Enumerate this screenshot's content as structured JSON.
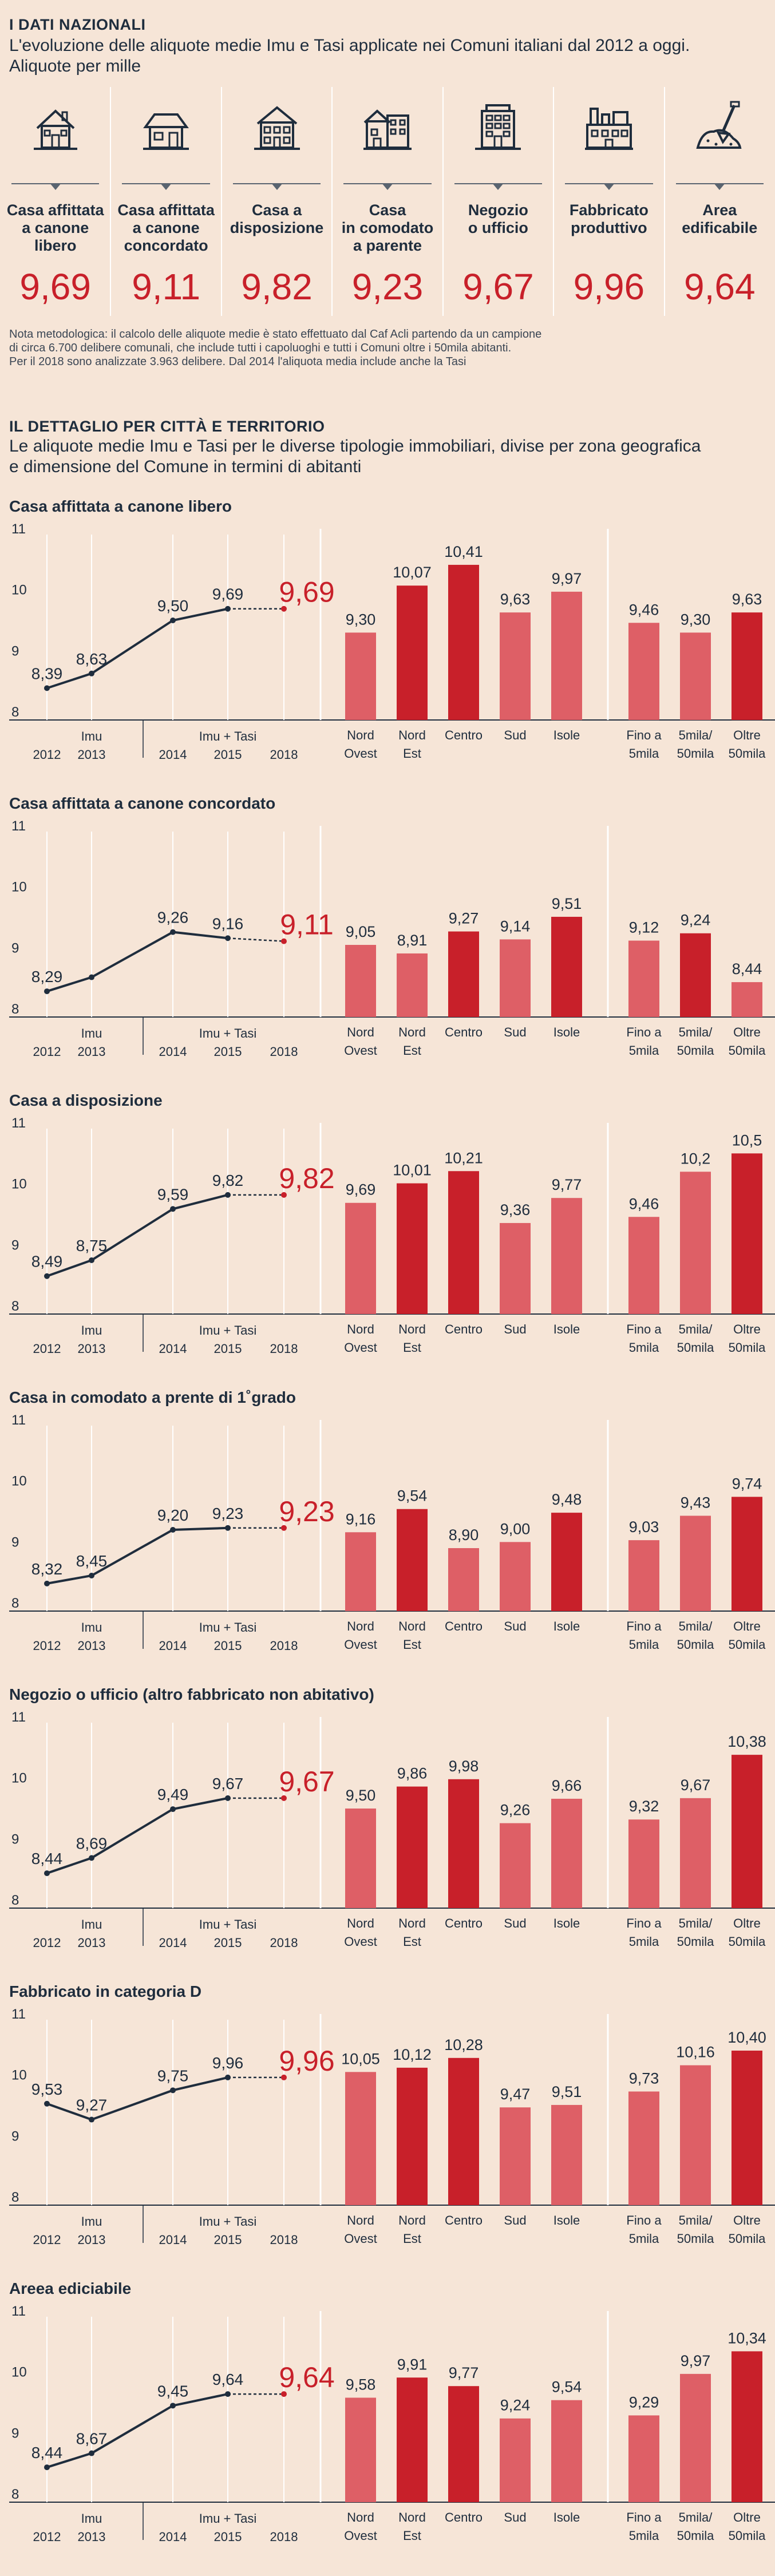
{
  "header": {
    "section": "I DATI NAZIONALI",
    "subtitle_line1": "L'evoluzione delle aliquote medie Imu e Tasi applicate nei Comuni italiani dal 2012 a oggi.",
    "subtitle_line2": "Aliquote per mille"
  },
  "cards": [
    {
      "icon": "house-icon",
      "label_lines": [
        "Casa affittata",
        "a canone",
        "libero"
      ],
      "value": "9,69"
    },
    {
      "icon": "cottage-icon",
      "label_lines": [
        "Casa affittata",
        "a canone",
        "concordato"
      ],
      "value": "9,11"
    },
    {
      "icon": "townhouse-icon",
      "label_lines": [
        "Casa a",
        "disposizione"
      ],
      "value": "9,82"
    },
    {
      "icon": "homes-icon",
      "label_lines": [
        "Casa",
        "in comodato",
        "a parente"
      ],
      "value": "9,23"
    },
    {
      "icon": "office-building-icon",
      "label_lines": [
        "Negozio",
        "o ufficio"
      ],
      "value": "9,67"
    },
    {
      "icon": "factory-icon",
      "label_lines": [
        "Fabbricato",
        "produttivo"
      ],
      "value": "9,96"
    },
    {
      "icon": "soil-shovel-icon",
      "label_lines": [
        "Area",
        "edificabile"
      ],
      "value": "9,64"
    }
  ],
  "note": {
    "line1": "Nota metodologica: il calcolo delle aliquote medie è stato effettuato dal Caf Acli partendo da un campione",
    "line2": "di circa 6.700 delibere comunali, che include  tutti i capoluoghi e tutti i Comuni oltre i 50mila abitanti.",
    "line3": "Per il 2018 sono analizzate 3.963 delibere. Dal 2014 l'aliquota media include anche la Tasi"
  },
  "detail": {
    "section": "IL DETTAGLIO PER CITTÀ E TERRITORIO",
    "subtitle_line1": "Le aliquote medie Imu e Tasi per le diverse tipologie immobiliari, divise per zona geografica",
    "subtitle_line2": "e dimensione del Comune in termini di abitanti"
  },
  "colors": {
    "background": "#f6e5d7",
    "red": "#c8202a",
    "light_red": "#de5f66",
    "navy": "#1f2d3d"
  },
  "chart_data": [
    {
      "title": "Casa affittata a canone libero",
      "type": "line",
      "y_ticks": [
        "11",
        "10",
        "9",
        "8"
      ],
      "ylim": [
        8,
        11
      ],
      "line": {
        "x": [
          "2012",
          "2013",
          "2014",
          "2015",
          "2018"
        ],
        "values": [
          8.39,
          8.63,
          9.5,
          9.69,
          9.69
        ],
        "labels": [
          "8,39",
          "8,63",
          "9,50",
          "9,69",
          "9,69"
        ],
        "groups": [
          "Imu",
          "Imu + Tasi"
        ]
      },
      "regions": {
        "type": "bar",
        "categories": [
          "Nord Ovest",
          "Nord Est",
          "Centro",
          "Sud",
          "Isole"
        ],
        "values": [
          9.3,
          10.07,
          10.41,
          9.63,
          9.97
        ],
        "labels": [
          "9,30",
          "10,07",
          "10,41",
          "9,63",
          "9,97"
        ]
      },
      "sizes": {
        "type": "bar",
        "categories": [
          "Fino a 5mila",
          "5mila/ 50mila",
          "Oltre 50mila"
        ],
        "values": [
          9.46,
          9.3,
          9.63
        ],
        "labels": [
          "9,46",
          "9,30",
          "9,63"
        ]
      }
    },
    {
      "title": "Casa affittata a canone concordato",
      "type": "line",
      "y_ticks": [
        "11",
        "10",
        "9",
        "8"
      ],
      "ylim": [
        8,
        11
      ],
      "line": {
        "x": [
          "2012",
          "2013",
          "2014",
          "2015",
          "2018"
        ],
        "values": [
          8.29,
          8.52,
          9.26,
          9.16,
          9.11
        ],
        "labels": [
          "8,29",
          "",
          "9,26",
          "9,16",
          "9,11"
        ],
        "groups": [
          "Imu",
          "Imu + Tasi"
        ]
      },
      "regions": {
        "type": "bar",
        "categories": [
          "Nord Ovest",
          "Nord Est",
          "Centro",
          "Sud",
          "Isole"
        ],
        "values": [
          9.05,
          8.91,
          9.27,
          9.14,
          9.51
        ],
        "labels": [
          "9,05",
          "8,91",
          "9,27",
          "9,14",
          "9,51"
        ]
      },
      "sizes": {
        "type": "bar",
        "categories": [
          "Fino a 5mila",
          "5mila/ 50mila",
          "Oltre 50mila"
        ],
        "values": [
          9.12,
          9.24,
          8.44
        ],
        "labels": [
          "9,12",
          "9,24",
          "8,44"
        ]
      }
    },
    {
      "title": "Casa a disposizione",
      "type": "line",
      "y_ticks": [
        "11",
        "10",
        "9",
        "8"
      ],
      "ylim": [
        8,
        11
      ],
      "line": {
        "x": [
          "2012",
          "2013",
          "2014",
          "2015",
          "2018"
        ],
        "values": [
          8.49,
          8.75,
          9.59,
          9.82,
          9.82
        ],
        "labels": [
          "8,49",
          "8,75",
          "9,59",
          "9,82",
          "9,82"
        ],
        "groups": [
          "Imu",
          "Imu + Tasi"
        ]
      },
      "regions": {
        "type": "bar",
        "categories": [
          "Nord Ovest",
          "Nord Est",
          "Centro",
          "Sud",
          "Isole"
        ],
        "values": [
          9.69,
          10.01,
          10.21,
          9.36,
          9.77
        ],
        "labels": [
          "9,69",
          "10,01",
          "10,21",
          "9,36",
          "9,77"
        ]
      },
      "sizes": {
        "type": "bar",
        "categories": [
          "Fino a 5mila",
          "5mila/ 50mila",
          "Oltre 50mila"
        ],
        "values": [
          9.46,
          10.2,
          10.5
        ],
        "labels": [
          "9,46",
          "10,2",
          "10,5"
        ]
      }
    },
    {
      "title": "Casa in comodato a prente di 1˚grado",
      "type": "line",
      "y_ticks": [
        "11",
        "10",
        "9",
        "8"
      ],
      "ylim": [
        8,
        11
      ],
      "line": {
        "x": [
          "2012",
          "2013",
          "2014",
          "2015",
          "2018"
        ],
        "values": [
          8.32,
          8.45,
          9.2,
          9.23,
          9.23
        ],
        "labels": [
          "8,32",
          "8,45",
          "9,20",
          "9,23",
          "9,23"
        ],
        "groups": [
          "Imu",
          "Imu + Tasi"
        ]
      },
      "regions": {
        "type": "bar",
        "categories": [
          "Nord Ovest",
          "Nord Est",
          "Centro",
          "Sud",
          "Isole"
        ],
        "values": [
          9.16,
          9.54,
          8.9,
          9.0,
          9.48
        ],
        "labels": [
          "9,16",
          "9,54",
          "8,90",
          "9,00",
          "9,48"
        ]
      },
      "sizes": {
        "type": "bar",
        "categories": [
          "Fino a 5mila",
          "5mila/ 50mila",
          "Oltre 50mila"
        ],
        "values": [
          9.03,
          9.43,
          9.74
        ],
        "labels": [
          "9,03",
          "9,43",
          "9,74"
        ]
      }
    },
    {
      "title": "Negozio o ufficio (altro fabbricato non abitativo)",
      "type": "line",
      "y_ticks": [
        "11",
        "10",
        "9",
        "8"
      ],
      "ylim": [
        8,
        11
      ],
      "line": {
        "x": [
          "2012",
          "2013",
          "2014",
          "2015",
          "2018"
        ],
        "values": [
          8.44,
          8.69,
          9.49,
          9.67,
          9.67
        ],
        "labels": [
          "8,44",
          "8,69",
          "9,49",
          "9,67",
          "9,67"
        ],
        "groups": [
          "Imu",
          "Imu + Tasi"
        ]
      },
      "regions": {
        "type": "bar",
        "categories": [
          "Nord Ovest",
          "Nord Est",
          "Centro",
          "Sud",
          "Isole"
        ],
        "values": [
          9.5,
          9.86,
          9.98,
          9.26,
          9.66
        ],
        "labels": [
          "9,50",
          "9,86",
          "9,98",
          "9,26",
          "9,66"
        ]
      },
      "sizes": {
        "type": "bar",
        "categories": [
          "Fino a 5mila",
          "5mila/ 50mila",
          "Oltre 50mila"
        ],
        "values": [
          9.32,
          9.67,
          10.38
        ],
        "labels": [
          "9,32",
          "9,67",
          "10,38"
        ]
      }
    },
    {
      "title": "Fabbricato in categoria D",
      "type": "line",
      "y_ticks": [
        "11",
        "10",
        "9",
        "8"
      ],
      "ylim": [
        8,
        11
      ],
      "line": {
        "x": [
          "2012",
          "2013",
          "2014",
          "2015",
          "2018"
        ],
        "values": [
          9.53,
          9.27,
          9.75,
          9.96,
          9.96
        ],
        "labels": [
          "9,53",
          "9,27",
          "9,75",
          "9,96",
          "9,96"
        ],
        "groups": [
          "Imu",
          "Imu + Tasi"
        ]
      },
      "regions": {
        "type": "bar",
        "categories": [
          "Nord Ovest",
          "Nord Est",
          "Centro",
          "Sud",
          "Isole"
        ],
        "values": [
          10.05,
          10.12,
          10.28,
          9.47,
          9.51
        ],
        "labels": [
          "10,05",
          "10,12",
          "10,28",
          "9,47",
          "9,51"
        ]
      },
      "sizes": {
        "type": "bar",
        "categories": [
          "Fino a 5mila",
          "5mila/ 50mila",
          "Oltre 50mila"
        ],
        "values": [
          9.73,
          10.16,
          10.4
        ],
        "labels": [
          "9,73",
          "10,16",
          "10,40"
        ]
      }
    },
    {
      "title": "Areea ediciabile",
      "type": "line",
      "y_ticks": [
        "11",
        "10",
        "9",
        "8"
      ],
      "ylim": [
        8,
        11
      ],
      "line": {
        "x": [
          "2012",
          "2013",
          "2014",
          "2015",
          "2018"
        ],
        "values": [
          8.44,
          8.67,
          9.45,
          9.64,
          9.64
        ],
        "labels": [
          "8,44",
          "8,67",
          "9,45",
          "9,64",
          "9,64"
        ],
        "groups": [
          "Imu",
          "Imu + Tasi"
        ]
      },
      "regions": {
        "type": "bar",
        "categories": [
          "Nord Ovest",
          "Nord Est",
          "Centro",
          "Sud",
          "Isole"
        ],
        "values": [
          9.58,
          9.91,
          9.77,
          9.24,
          9.54
        ],
        "labels": [
          "9,58",
          "9,91",
          "9,77",
          "9,24",
          "9,54"
        ]
      },
      "sizes": {
        "type": "bar",
        "categories": [
          "Fino a 5mila",
          "5mila/ 50mila",
          "Oltre 50mila"
        ],
        "values": [
          9.29,
          9.97,
          10.34
        ],
        "labels": [
          "9,29",
          "9,97",
          "10,34"
        ]
      }
    }
  ]
}
